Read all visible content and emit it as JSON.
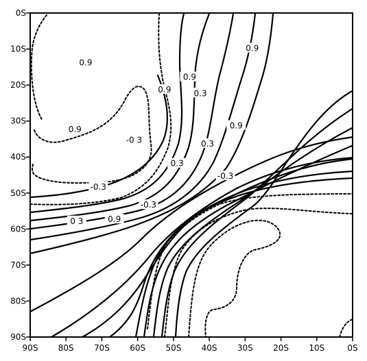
{
  "chart_data": {
    "type": "contour",
    "title": "",
    "xlabel": "",
    "ylabel": "",
    "x_ticks": [
      "90S",
      "80S",
      "70S",
      "60S",
      "50S",
      "40S",
      "30S",
      "20S",
      "10S",
      "0S"
    ],
    "y_ticks": [
      "0S",
      "10S",
      "20S",
      "30S",
      "40S",
      "50S",
      "60S",
      "70S",
      "80S",
      "90S"
    ],
    "xlim": [
      90,
      0
    ],
    "ylim": [
      0,
      90
    ],
    "grid": false,
    "contour_levels_labeled": [
      "0.9",
      "0.3",
      "-0.3"
    ],
    "negative_contours_style": "dashed",
    "positive_contours_style": "solid",
    "contour_labels": [
      {
        "text": "0.9",
        "x": 77.5,
        "y": 32.5
      },
      {
        "text": "0.9",
        "x": 45.5,
        "y": 18.0
      },
      {
        "text": "-0.3",
        "x": 71.0,
        "y": 48.5
      },
      {
        "text": "0 3",
        "x": 77.0,
        "y": 58.0
      },
      {
        "text": "0.9",
        "x": 66.5,
        "y": 57.5
      },
      {
        "text": "-0.3",
        "x": 57.0,
        "y": 53.5
      },
      {
        "text": "0.3",
        "x": 49.0,
        "y": 42.0
      },
      {
        "text": "0.9",
        "x": 32.5,
        "y": 31.5
      },
      {
        "text": "0.9",
        "x": 52.5,
        "y": 21.5
      },
      {
        "text": "0.3",
        "x": 40.5,
        "y": 36.5
      },
      {
        "text": "0.3",
        "x": 42.5,
        "y": 22.5
      },
      {
        "text": "-0.3",
        "x": 35.5,
        "y": 45.5
      },
      {
        "text": "-0 3",
        "x": 61.0,
        "y": 35.5
      },
      {
        "text": "0.9",
        "x": 74.5,
        "y": 14.0
      },
      {
        "text": "0.9",
        "x": 28.0,
        "y": 10.0
      }
    ]
  }
}
